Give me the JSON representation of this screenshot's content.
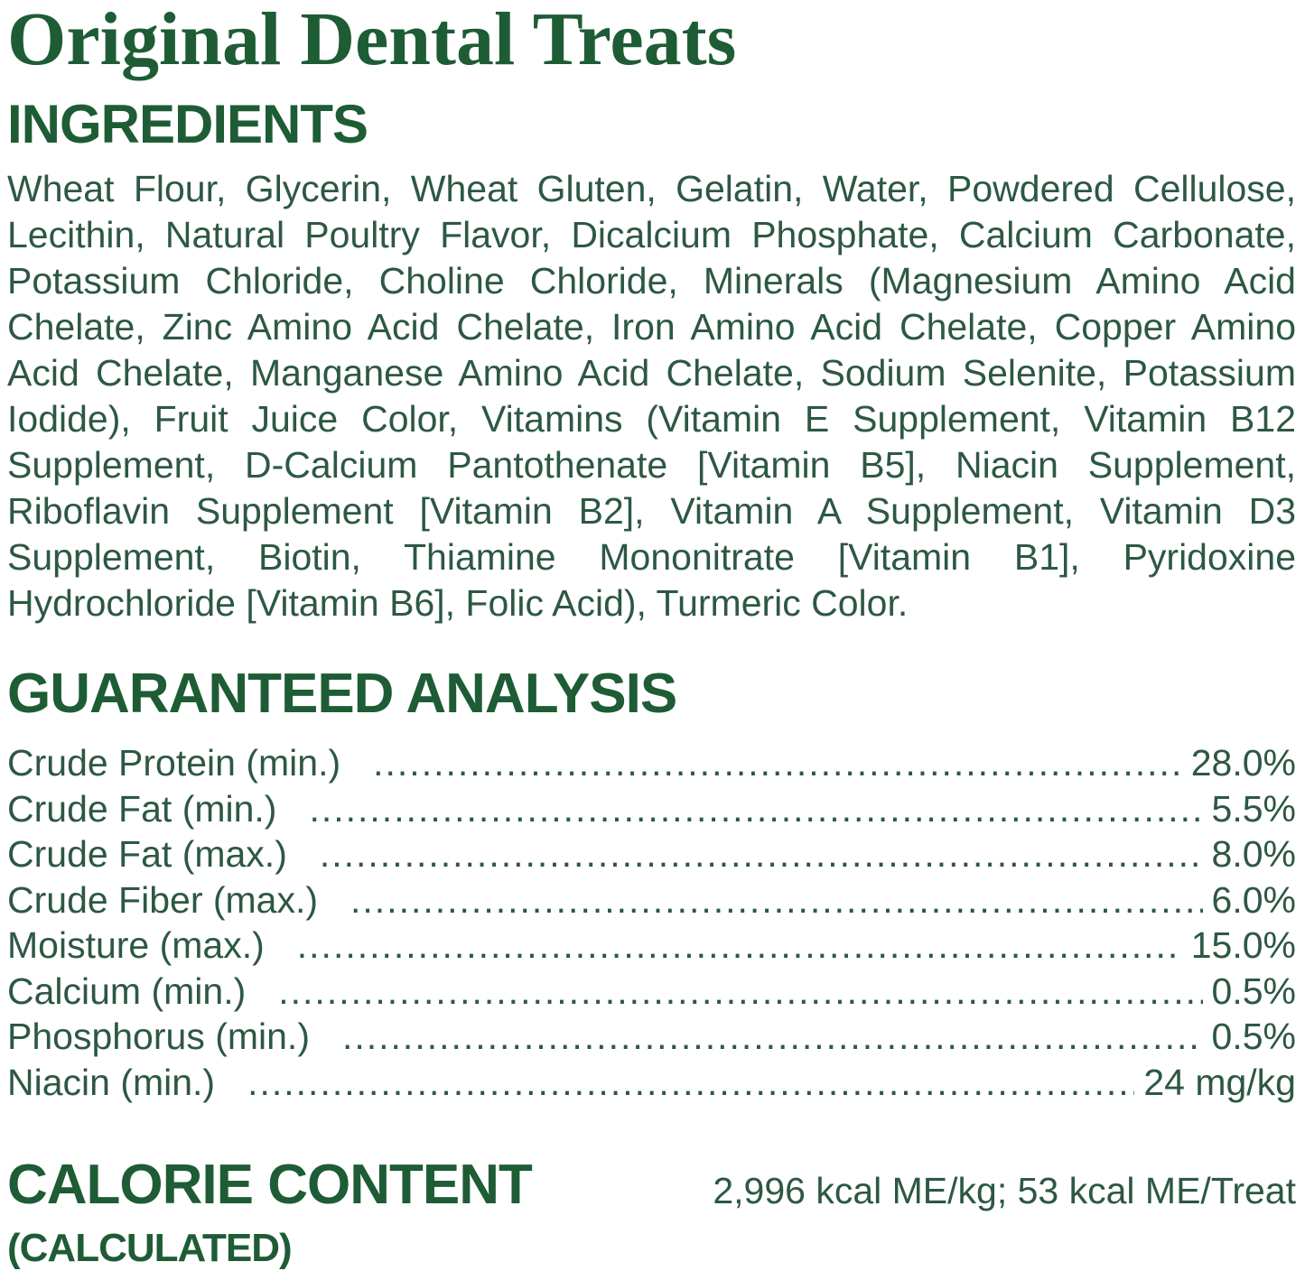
{
  "title": "Original Dental Treats",
  "colors": {
    "heading_green": "#1e5c35",
    "body_green": "#2d5843",
    "background": "#ffffff"
  },
  "ingredients": {
    "heading": "INGREDIENTS",
    "text": "Wheat Flour, Glycerin, Wheat Gluten, Gelatin, Water, Powdered Cellulose, Lecithin, Natural Poultry Flavor, Dicalcium Phosphate, Calcium Carbonate, Potassium Chloride, Choline Chloride, Minerals (Magnesium Amino Acid Chelate, Zinc Amino Acid Chelate, Iron Amino Acid Chelate, Copper Amino Acid Chelate, Manganese Amino Acid Chelate, Sodium Selenite, Potassium Iodide), Fruit Juice Color, Vitamins (Vitamin E Supplement, Vitamin B12 Supplement, D-Calcium Pantothenate [Vitamin B5], Niacin Supplement, Riboflavin Supplement [Vitamin B2], Vitamin A Supplement, Vitamin D3 Supplement, Biotin, Thiamine Mononitrate [Vitamin B1], Pyridoxine Hydrochloride [Vitamin B6], Folic Acid), Turmeric Color."
  },
  "guaranteed_analysis": {
    "heading": "GUARANTEED ANALYSIS",
    "rows": [
      {
        "label": "Crude Protein (min.)",
        "value": "28.0%"
      },
      {
        "label": "Crude Fat (min.)",
        "value": "5.5%"
      },
      {
        "label": "Crude Fat (max.)",
        "value": "8.0%"
      },
      {
        "label": "Crude Fiber (max.)",
        "value": "6.0%"
      },
      {
        "label": "Moisture (max.)",
        "value": "15.0%"
      },
      {
        "label": "Calcium (min.)",
        "value": "0.5%"
      },
      {
        "label": "Phosphorus (min.)",
        "value": "0.5%"
      },
      {
        "label": "Niacin (min.)",
        "value": "24 mg/kg"
      }
    ]
  },
  "calorie_content": {
    "heading": "CALORIE CONTENT",
    "subheading": "(CALCULATED)",
    "value": "2,996 kcal ME/kg; 53 kcal ME/Treat"
  }
}
